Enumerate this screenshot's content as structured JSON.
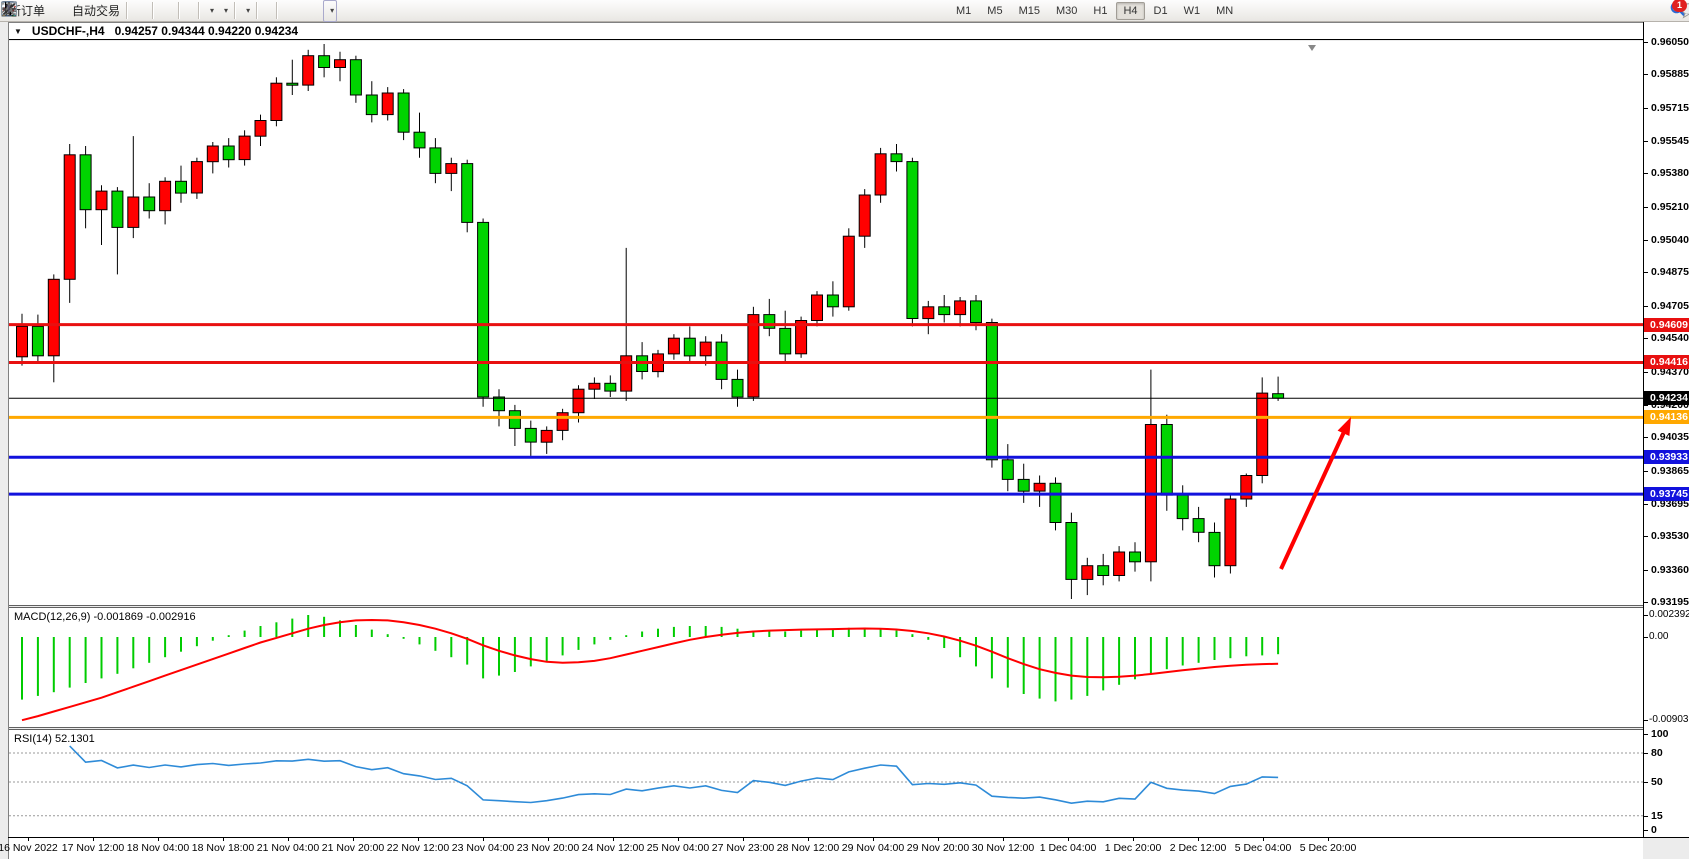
{
  "toolbar": {
    "buttons": [
      {
        "name": "new-order-button",
        "icon": "new-order",
        "label": "新订单"
      },
      {
        "name": "mql-ticket-button",
        "icon": "ticket"
      },
      {
        "name": "terminal-button",
        "icon": "terminal"
      },
      {
        "name": "signals-button",
        "icon": "signal"
      },
      {
        "name": "auto-trading-button",
        "icon": "autotrade",
        "label": "自动交易"
      },
      {
        "name": "sep"
      },
      {
        "name": "bar-chart-button",
        "icon": "chart-bars"
      },
      {
        "name": "candle-chart-button",
        "icon": "chart-candles"
      },
      {
        "name": "line-chart-button",
        "icon": "chart-line"
      },
      {
        "name": "sep"
      },
      {
        "name": "zoom-in-button",
        "icon": "zoom-in"
      },
      {
        "name": "zoom-out-button",
        "icon": "zoom-out"
      },
      {
        "name": "tile-windows-button",
        "icon": "tile-windows"
      },
      {
        "name": "sep"
      },
      {
        "name": "chart-shift-button",
        "icon": "step-in"
      },
      {
        "name": "chart-autoscroll-button",
        "icon": "step-back"
      },
      {
        "name": "sep"
      },
      {
        "name": "new-chart-button",
        "icon": "new-chart",
        "caret": true
      },
      {
        "name": "periods-button",
        "icon": "period-clock",
        "caret": true
      },
      {
        "name": "sep"
      },
      {
        "name": "templates-button",
        "icon": "indicators",
        "caret": true
      },
      {
        "name": "sep"
      },
      {
        "name": "cursor-button",
        "icon": "cursor"
      },
      {
        "name": "crosshair-button",
        "icon": "crosshair"
      },
      {
        "name": "sep"
      },
      {
        "name": "vertical-line-button",
        "icon": "vline"
      },
      {
        "name": "horizontal-line-button",
        "icon": "hline"
      },
      {
        "name": "trendline-button",
        "icon": "tline"
      },
      {
        "name": "channel-button",
        "icon": "channel"
      },
      {
        "name": "fibonacci-button",
        "icon": "fibo"
      },
      {
        "name": "text-button",
        "icon": "text-a"
      },
      {
        "name": "text-label-button",
        "icon": "text-label"
      },
      {
        "name": "arrows-button",
        "icon": "arrows-tool",
        "caret": true
      }
    ],
    "timeframes": [
      "M1",
      "M5",
      "M15",
      "M30",
      "H1",
      "H4",
      "D1",
      "W1",
      "MN"
    ],
    "active_timeframe": "H4",
    "notification_badge": "1"
  },
  "chart_header": {
    "dropdown_icon": "▼",
    "symbol": "USDCHF-,H4",
    "ohlc": "0.94257 0.94344 0.94220 0.94234"
  },
  "chart_data": {
    "type": "candlestick",
    "symbol": "USDCHF",
    "timeframe": "H4",
    "ohlc_current": {
      "open": 0.94257,
      "high": 0.94344,
      "low": 0.9422,
      "close": 0.94234
    },
    "candle_colors": {
      "bull": "#ff0000",
      "bear": "#00d400",
      "wick": "#000000"
    },
    "price_axis": {
      "ticks": [
        "0.96050",
        "0.95885",
        "0.95715",
        "0.95545",
        "0.95380",
        "0.95210",
        "0.95040",
        "0.94875",
        "0.94705",
        "0.94540",
        "0.94370",
        "0.94200",
        "0.94035",
        "0.93865",
        "0.93695",
        "0.93530",
        "0.93360",
        "0.93195"
      ],
      "visible_max": 0.96055,
      "visible_min": 0.93185
    },
    "time_labels": [
      "16 Nov 2022",
      "17 Nov 12:00",
      "18 Nov 04:00",
      "18 Nov 18:00",
      "21 Nov 04:00",
      "21 Nov 20:00",
      "22 Nov 12:00",
      "23 Nov 04:00",
      "23 Nov 20:00",
      "24 Nov 12:00",
      "25 Nov 04:00",
      "27 Nov 23:00",
      "28 Nov 12:00",
      "29 Nov 04:00",
      "29 Nov 20:00",
      "30 Nov 12:00",
      "1 Dec 04:00",
      "1 Dec 20:00",
      "2 Dec 12:00",
      "5 Dec 04:00",
      "5 Dec 20:00"
    ],
    "levels": [
      {
        "price": 0.94609,
        "label": "0.94609",
        "color": "#e81010",
        "type": "resistance",
        "width": 3
      },
      {
        "price": 0.94416,
        "label": "0.94416",
        "color": "#e81010",
        "type": "resistance",
        "width": 3
      },
      {
        "price": 0.94234,
        "label": "0.94234",
        "color": "#000000",
        "type": "current-price",
        "width": 1
      },
      {
        "price": 0.94136,
        "label": "0.94136",
        "color": "#ffa800",
        "type": "pivot",
        "width": 3
      },
      {
        "price": 0.93933,
        "label": "0.93933",
        "color": "#1212dd",
        "type": "support",
        "width": 3
      },
      {
        "price": 0.93745,
        "label": "0.93745",
        "color": "#1212dd",
        "type": "support",
        "width": 3
      }
    ],
    "candles": [
      [
        94445,
        94665,
        94400,
        94600
      ],
      [
        94600,
        94660,
        94415,
        94450
      ],
      [
        94450,
        94865,
        94315,
        94840
      ],
      [
        94840,
        95530,
        94720,
        95475
      ],
      [
        95475,
        95520,
        95100,
        95195
      ],
      [
        95195,
        95320,
        95015,
        95290
      ],
      [
        95290,
        95310,
        94865,
        95105
      ],
      [
        95105,
        95570,
        95050,
        95260
      ],
      [
        95260,
        95330,
        95150,
        95190
      ],
      [
        95190,
        95360,
        95120,
        95340
      ],
      [
        95340,
        95420,
        95230,
        95280
      ],
      [
        95280,
        95460,
        95250,
        95440
      ],
      [
        95440,
        95540,
        95380,
        95520
      ],
      [
        95520,
        95560,
        95410,
        95450
      ],
      [
        95450,
        95600,
        95420,
        95570
      ],
      [
        95570,
        95680,
        95520,
        95650
      ],
      [
        95650,
        95870,
        95620,
        95840
      ],
      [
        95840,
        95960,
        95780,
        95830
      ],
      [
        95830,
        96010,
        95800,
        95980
      ],
      [
        95980,
        96040,
        95870,
        95920
      ],
      [
        95920,
        96000,
        95850,
        95960
      ],
      [
        95960,
        95980,
        95740,
        95780
      ],
      [
        95780,
        95850,
        95640,
        95680
      ],
      [
        95680,
        95820,
        95650,
        95790
      ],
      [
        95790,
        95810,
        95550,
        95590
      ],
      [
        95590,
        95690,
        95460,
        95510
      ],
      [
        95510,
        95560,
        95330,
        95380
      ],
      [
        95380,
        95460,
        95290,
        95430
      ],
      [
        95430,
        95450,
        95080,
        95130
      ],
      [
        95130,
        95150,
        94190,
        94240
      ],
      [
        94240,
        94280,
        94090,
        94170
      ],
      [
        94170,
        94200,
        93990,
        94080
      ],
      [
        94080,
        94120,
        93940,
        94010
      ],
      [
        94010,
        94090,
        93950,
        94070
      ],
      [
        94070,
        94180,
        94020,
        94160
      ],
      [
        94160,
        94300,
        94110,
        94280
      ],
      [
        94280,
        94340,
        94230,
        94310
      ],
      [
        94310,
        94350,
        94240,
        94270
      ],
      [
        94270,
        95000,
        94220,
        94450
      ],
      [
        94450,
        94520,
        94330,
        94370
      ],
      [
        94370,
        94480,
        94340,
        94460
      ],
      [
        94460,
        94560,
        94430,
        94540
      ],
      [
        94540,
        94600,
        94410,
        94450
      ],
      [
        94450,
        94550,
        94400,
        94520
      ],
      [
        94520,
        94560,
        94280,
        94330
      ],
      [
        94330,
        94380,
        94190,
        94240
      ],
      [
        94240,
        94700,
        94220,
        94660
      ],
      [
        94660,
        94740,
        94550,
        94590
      ],
      [
        94590,
        94680,
        94420,
        94460
      ],
      [
        94460,
        94650,
        94440,
        94630
      ],
      [
        94630,
        94780,
        94600,
        94760
      ],
      [
        94760,
        94830,
        94650,
        94700
      ],
      [
        94700,
        95100,
        94680,
        95060
      ],
      [
        95060,
        95300,
        95000,
        95270
      ],
      [
        95270,
        95510,
        95230,
        95480
      ],
      [
        95480,
        95530,
        95390,
        95440
      ],
      [
        95440,
        95460,
        94600,
        94640
      ],
      [
        94640,
        94730,
        94560,
        94700
      ],
      [
        94700,
        94760,
        94620,
        94660
      ],
      [
        94660,
        94750,
        94600,
        94730
      ],
      [
        94730,
        94760,
        94580,
        94620
      ],
      [
        94620,
        94640,
        93880,
        93920
      ],
      [
        93920,
        94000,
        93760,
        93820
      ],
      [
        93820,
        93900,
        93700,
        93760
      ],
      [
        93760,
        93840,
        93680,
        93800
      ],
      [
        93800,
        93830,
        93560,
        93600
      ],
      [
        93600,
        93650,
        93210,
        93310
      ],
      [
        93310,
        93420,
        93230,
        93380
      ],
      [
        93380,
        93440,
        93280,
        93330
      ],
      [
        93330,
        93480,
        93300,
        93450
      ],
      [
        93450,
        93500,
        93350,
        93400
      ],
      [
        93400,
        94380,
        93300,
        94100
      ],
      [
        94100,
        94150,
        93660,
        93740
      ],
      [
        93740,
        93790,
        93560,
        93620
      ],
      [
        93620,
        93680,
        93500,
        93550
      ],
      [
        93550,
        93600,
        93320,
        93380
      ],
      [
        93380,
        93740,
        93340,
        93720
      ],
      [
        93720,
        93850,
        93680,
        93840
      ],
      [
        93840,
        94340,
        93800,
        94260
      ],
      [
        94257,
        94344,
        94220,
        94234
      ]
    ],
    "macd": {
      "label_full": "MACD(12,26,9) -0.001869 -0.002916",
      "params": "12,26,9",
      "macd_value": -0.001869,
      "signal_value": -0.002916,
      "axis_labels": [
        "0.002392",
        "0.00",
        "-0.009037"
      ],
      "histogram_color": "#00cc00",
      "signal_color": "#ff0000",
      "histogram_x1e4": [
        -68,
        -64,
        -60,
        -55,
        -50,
        -45,
        -40,
        -34,
        -28,
        -22,
        -16,
        -10,
        -4,
        2,
        7,
        12,
        16,
        20,
        23.9,
        22,
        18,
        13,
        8,
        3,
        -2,
        -8,
        -15,
        -22,
        -30,
        -45,
        -42,
        -38,
        -32,
        -26,
        -20,
        -14,
        -8,
        -3,
        2,
        6,
        9,
        11,
        12,
        12,
        11,
        9,
        7,
        6,
        6,
        7,
        8,
        9,
        10,
        10,
        9,
        7,
        3,
        -3,
        -12,
        -22,
        -32,
        -45,
        -55,
        -62,
        -67,
        -70,
        -68,
        -64,
        -58,
        -52,
        -46,
        -40,
        -35,
        -31,
        -28,
        -25,
        -23,
        -21,
        -20,
        -18.7
      ],
      "signal_x1e4": [
        -90.4,
        -86,
        -81,
        -76,
        -71,
        -66,
        -60,
        -54,
        -48,
        -42,
        -36,
        -30,
        -24,
        -18,
        -12,
        -6,
        -1,
        4,
        9,
        13,
        16,
        18,
        18.5,
        18,
        16,
        13,
        9,
        4,
        -2,
        -9,
        -15,
        -20,
        -24,
        -27,
        -28,
        -27.5,
        -26,
        -23,
        -19,
        -15,
        -11,
        -7,
        -3,
        0,
        2.5,
        4.5,
        6,
        7,
        7.5,
        8,
        8.3,
        8.6,
        9,
        9.2,
        9,
        8.2,
        6.5,
        4,
        0.5,
        -4,
        -9.5,
        -16,
        -23,
        -29.5,
        -35,
        -39,
        -42,
        -43.5,
        -43.8,
        -43.2,
        -42,
        -40.2,
        -38.2,
        -36.2,
        -34.3,
        -32.6,
        -31.2,
        -30.2,
        -29.5,
        -29.16
      ]
    },
    "rsi": {
      "label_full": "RSI(14) 52.1301",
      "period": 14,
      "value": 52.1301,
      "axis_labels": [
        "100",
        "80",
        "50",
        "15",
        "0"
      ],
      "level_lines": [
        80,
        50,
        15
      ],
      "line_color": "#2e8bd8"
    },
    "annotation_arrow": {
      "color": "#ff0000",
      "from_price": 0.9337,
      "to_price": 0.9416,
      "description": "bullish trend arrow pointing up toward 0.94136 level"
    }
  }
}
